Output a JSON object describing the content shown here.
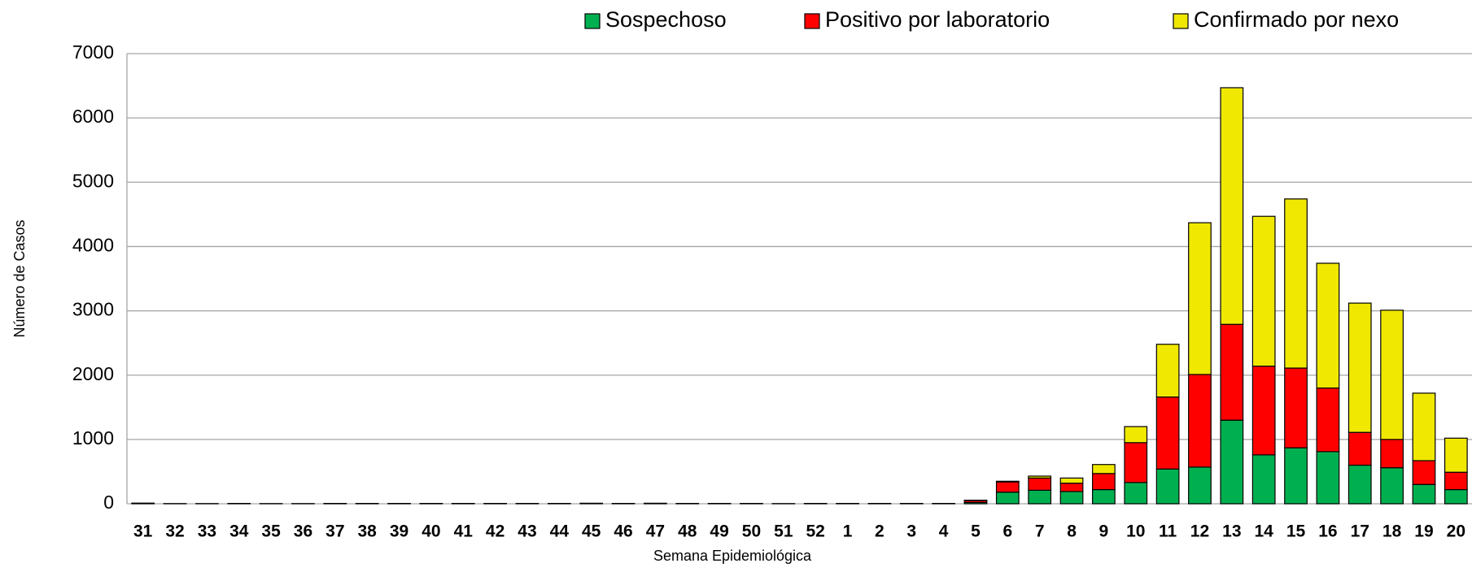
{
  "chart_data": {
    "type": "stacked_bar",
    "x_label": "Semana Epidemiológica",
    "y_label": "Número de Casos",
    "categories": [
      "31",
      "32",
      "33",
      "34",
      "35",
      "36",
      "37",
      "38",
      "39",
      "40",
      "41",
      "42",
      "43",
      "44",
      "45",
      "46",
      "47",
      "48",
      "49",
      "50",
      "51",
      "52",
      "1",
      "2",
      "3",
      "4",
      "5",
      "6",
      "7",
      "8",
      "9",
      "10",
      "11",
      "12",
      "13",
      "14",
      "15",
      "16",
      "17",
      "18",
      "19",
      "20"
    ],
    "series": [
      {
        "name": "Sospechoso",
        "color": "#00b050",
        "values": [
          10,
          3,
          3,
          5,
          3,
          3,
          5,
          5,
          5,
          5,
          5,
          5,
          5,
          5,
          8,
          5,
          8,
          5,
          5,
          5,
          3,
          5,
          5,
          5,
          5,
          5,
          20,
          180,
          210,
          190,
          220,
          330,
          540,
          570,
          1300,
          760,
          870,
          810,
          600,
          560,
          300,
          220
        ]
      },
      {
        "name": "Positivo por laboratorio",
        "color": "#ff0000",
        "values": [
          0,
          0,
          0,
          0,
          0,
          0,
          0,
          0,
          0,
          0,
          0,
          0,
          0,
          0,
          0,
          0,
          0,
          0,
          0,
          0,
          0,
          0,
          0,
          0,
          0,
          0,
          30,
          160,
          190,
          130,
          250,
          620,
          1120,
          1440,
          1490,
          1380,
          1240,
          990,
          510,
          440,
          370,
          270
        ]
      },
      {
        "name": "Confirmado por nexo",
        "color": "#f0e800",
        "values": [
          0,
          0,
          0,
          0,
          0,
          0,
          0,
          0,
          0,
          0,
          0,
          0,
          0,
          0,
          0,
          0,
          0,
          0,
          0,
          0,
          0,
          0,
          0,
          0,
          0,
          0,
          5,
          10,
          30,
          80,
          140,
          250,
          820,
          2360,
          3680,
          2330,
          2630,
          1940,
          2010,
          2010,
          1050,
          530
        ]
      }
    ],
    "ylim": [
      0,
      7000
    ],
    "yticks": [
      0,
      1000,
      2000,
      3000,
      4000,
      5000,
      6000,
      7000
    ],
    "grid": true,
    "legend": "top"
  }
}
